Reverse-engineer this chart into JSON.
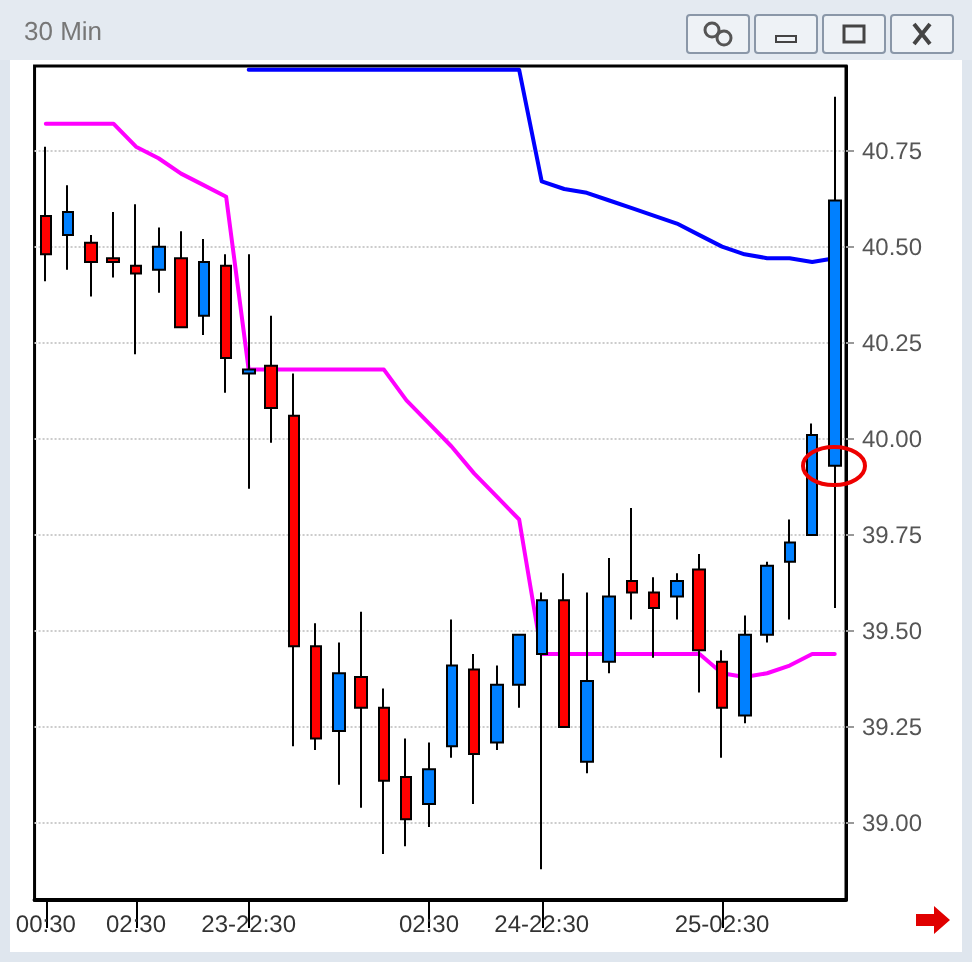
{
  "chart_data": {
    "type": "candlestick",
    "title": "30 Min",
    "categories": [
      "00:30",
      null,
      null,
      null,
      "02:30",
      null,
      null,
      null,
      null,
      "23-22:30",
      null,
      null,
      null,
      null,
      null,
      null,
      null,
      "02:30",
      null,
      null,
      null,
      null,
      "24-22:30",
      null,
      null,
      null,
      null,
      null,
      null,
      null,
      "25-02:30",
      null,
      null,
      null,
      null,
      null
    ],
    "ohlc": [
      [
        40.58,
        40.76,
        40.41,
        40.48
      ],
      [
        40.53,
        40.66,
        40.44,
        40.59
      ],
      [
        40.51,
        40.53,
        40.37,
        40.46
      ],
      [
        40.47,
        40.59,
        40.42,
        40.46
      ],
      [
        40.45,
        40.61,
        40.22,
        40.43
      ],
      [
        40.44,
        40.55,
        40.38,
        40.5
      ],
      [
        40.47,
        40.54,
        40.29,
        40.29
      ],
      [
        40.32,
        40.52,
        40.27,
        40.46
      ],
      [
        40.45,
        40.48,
        40.12,
        40.21
      ],
      [
        40.17,
        40.48,
        39.87,
        40.18
      ],
      [
        40.19,
        40.32,
        39.99,
        40.08
      ],
      [
        40.06,
        40.17,
        39.2,
        39.46
      ],
      [
        39.46,
        39.52,
        39.19,
        39.22
      ],
      [
        39.24,
        39.47,
        39.1,
        39.39
      ],
      [
        39.38,
        39.55,
        39.04,
        39.3
      ],
      [
        39.3,
        39.35,
        38.92,
        39.11
      ],
      [
        39.12,
        39.22,
        38.94,
        39.01
      ],
      [
        39.05,
        39.21,
        38.99,
        39.14
      ],
      [
        39.2,
        39.53,
        39.17,
        39.41
      ],
      [
        39.4,
        39.44,
        39.05,
        39.18
      ],
      [
        39.21,
        39.41,
        39.19,
        39.36
      ],
      [
        39.36,
        39.49,
        39.3,
        39.49
      ],
      [
        39.44,
        39.6,
        38.88,
        39.58
      ],
      [
        39.58,
        39.65,
        39.25,
        39.25
      ],
      [
        39.16,
        39.6,
        39.13,
        39.37
      ],
      [
        39.42,
        39.69,
        39.39,
        39.59
      ],
      [
        39.63,
        39.82,
        39.53,
        39.6
      ],
      [
        39.6,
        39.64,
        39.43,
        39.56
      ],
      [
        39.59,
        39.65,
        39.53,
        39.63
      ],
      [
        39.66,
        39.7,
        39.34,
        39.45
      ],
      [
        39.42,
        39.45,
        39.17,
        39.3
      ],
      [
        39.28,
        39.54,
        39.26,
        39.49
      ],
      [
        39.49,
        39.68,
        39.47,
        39.67
      ],
      [
        39.68,
        39.79,
        39.53,
        39.73
      ],
      [
        39.75,
        40.04,
        39.75,
        40.01
      ],
      [
        39.93,
        40.89,
        39.56,
        40.62
      ]
    ],
    "colors": [
      "#ff0000",
      "#0080ff",
      "#ff0000",
      "#ff0000",
      "#ff0000",
      "#0080ff",
      "#ff0000",
      "#0080ff",
      "#ff0000",
      "#0080ff",
      "#ff0000",
      "#ff0000",
      "#ff0000",
      "#0080ff",
      "#ff0000",
      "#ff0000",
      "#ff0000",
      "#0080ff",
      "#0080ff",
      "#ff0000",
      "#0080ff",
      "#0080ff",
      "#0080ff",
      "#ff0000",
      "#0080ff",
      "#0080ff",
      "#ff0000",
      "#ff0000",
      "#0080ff",
      "#ff0000",
      "#ff0000",
      "#0080ff",
      "#0080ff",
      "#0080ff",
      "#0080ff",
      "#0080ff"
    ],
    "series": [
      {
        "type": "line",
        "color": "#ff00ff",
        "values": [
          40.82,
          40.82,
          40.82,
          40.82,
          40.76,
          40.73,
          40.69,
          40.66,
          40.63,
          40.18,
          40.18,
          40.18,
          40.18,
          40.18,
          40.18,
          40.18,
          40.1,
          40.04,
          39.98,
          39.91,
          39.85,
          39.79,
          39.44,
          39.44,
          39.44,
          39.44,
          39.44,
          39.44,
          39.44,
          39.44,
          39.39,
          39.38,
          39.39,
          39.41,
          39.44,
          39.44
        ]
      },
      {
        "type": "line",
        "color": "#0000ff",
        "values": [
          null,
          null,
          null,
          null,
          null,
          null,
          null,
          null,
          null,
          40.96,
          40.96,
          40.96,
          40.96,
          40.96,
          40.96,
          40.96,
          40.96,
          40.96,
          40.96,
          40.96,
          40.96,
          40.96,
          40.67,
          40.65,
          40.64,
          40.62,
          40.6,
          40.58,
          40.56,
          40.53,
          40.5,
          40.48,
          40.47,
          40.47,
          40.46,
          40.47
        ]
      }
    ],
    "ylim": [
      38.8,
      40.97
    ],
    "yticks": [
      {
        "value": 39,
        "label": "39.00"
      },
      {
        "value": 39.25,
        "label": "39.25"
      },
      {
        "value": 39.5,
        "label": "39.50"
      },
      {
        "value": 39.75,
        "label": "39.75"
      },
      {
        "value": 40,
        "label": "40.00"
      },
      {
        "value": 40.25,
        "label": "40.25"
      },
      {
        "value": 40.5,
        "label": "40.50"
      },
      {
        "value": 40.75,
        "label": "40.75"
      }
    ],
    "grid": "y",
    "marker": "none",
    "line_style": "solid"
  }
}
